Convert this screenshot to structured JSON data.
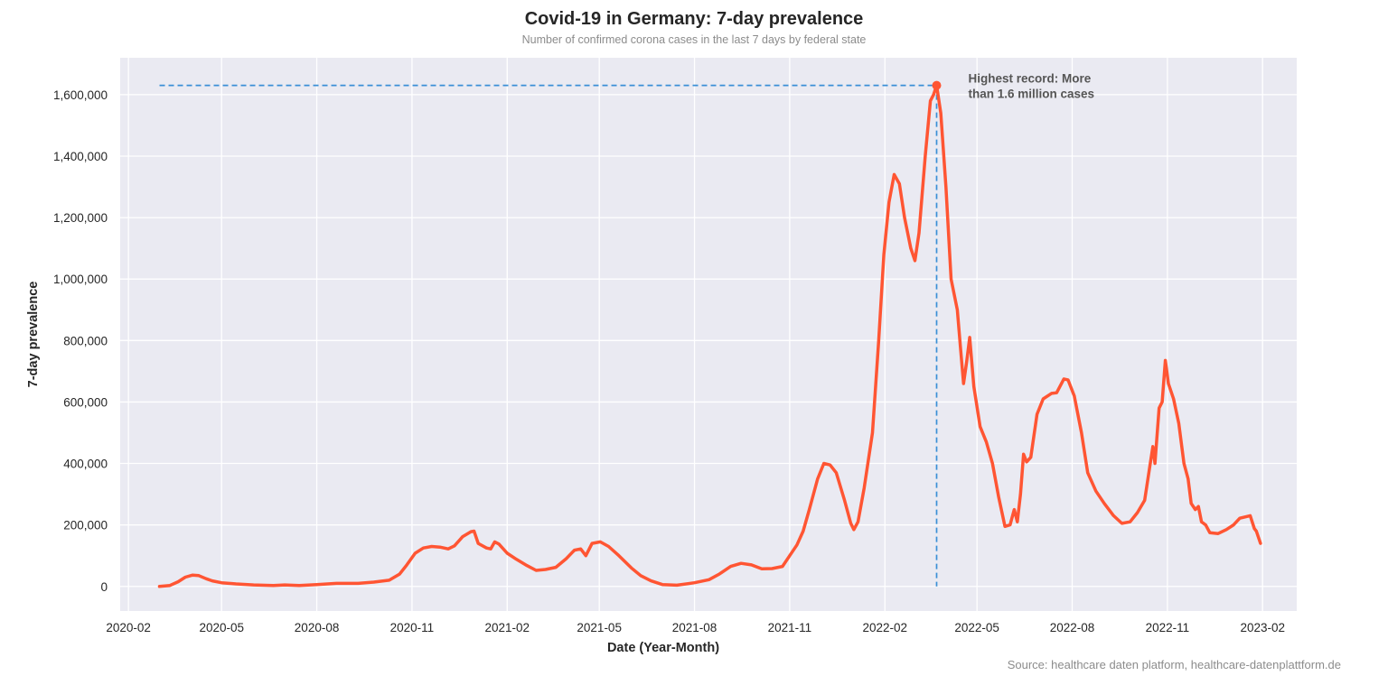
{
  "chart_data": {
    "type": "line",
    "title": "Covid-19 in Germany: 7-day prevalence",
    "subtitle": "Number of confirmed corona cases in the last 7 days by federal state",
    "xlabel": "Date (Year-Month)",
    "ylabel": "7-day prevalence",
    "source": "Source: healthcare daten platform, healthcare-datenplattform.de",
    "xlim": [
      "2020-01-24",
      "2023-03-06"
    ],
    "ylim": [
      -80000,
      1720000
    ],
    "grid": true,
    "x_ticks": [
      "2020-02-01",
      "2020-05-01",
      "2020-08-01",
      "2020-11-01",
      "2021-02-01",
      "2021-05-01",
      "2021-08-01",
      "2021-11-01",
      "2022-02-01",
      "2022-05-01",
      "2022-08-01",
      "2022-11-01",
      "2023-02-01"
    ],
    "x_tick_labels": [
      "2020-02",
      "2020-05",
      "2020-08",
      "2020-11",
      "2021-02",
      "2021-05",
      "2021-08",
      "2021-11",
      "2022-02",
      "2022-05",
      "2022-08",
      "2022-11",
      "2023-02"
    ],
    "y_ticks": [
      0,
      200000,
      400000,
      600000,
      800000,
      1000000,
      1200000,
      1400000,
      1600000
    ],
    "y_tick_labels": [
      "0",
      "200,000",
      "400,000",
      "600,000",
      "800,000",
      "1,000,000",
      "1,200,000",
      "1,400,000",
      "1,600,000"
    ],
    "colors": {
      "line": "#ff5533",
      "reference": "#3a8fd6",
      "background": "#eaeaf2",
      "grid": "#ffffff"
    },
    "series": [
      {
        "points": [
          [
            "2020-03-02",
            0
          ],
          [
            "2020-03-12",
            3000
          ],
          [
            "2020-03-20",
            15000
          ],
          [
            "2020-03-27",
            30000
          ],
          [
            "2020-04-03",
            37000
          ],
          [
            "2020-04-09",
            35000
          ],
          [
            "2020-04-16",
            25000
          ],
          [
            "2020-04-22",
            18000
          ],
          [
            "2020-05-01",
            12000
          ],
          [
            "2020-05-15",
            8000
          ],
          [
            "2020-06-01",
            5000
          ],
          [
            "2020-06-20",
            3000
          ],
          [
            "2020-07-01",
            5000
          ],
          [
            "2020-07-15",
            3000
          ],
          [
            "2020-08-01",
            6000
          ],
          [
            "2020-08-20",
            10000
          ],
          [
            "2020-09-10",
            10000
          ],
          [
            "2020-09-25",
            14000
          ],
          [
            "2020-10-10",
            20000
          ],
          [
            "2020-10-20",
            40000
          ],
          [
            "2020-10-27",
            70000
          ],
          [
            "2020-11-04",
            108000
          ],
          [
            "2020-11-12",
            125000
          ],
          [
            "2020-11-20",
            130000
          ],
          [
            "2020-11-28",
            128000
          ],
          [
            "2020-12-06",
            122000
          ],
          [
            "2020-12-12",
            132000
          ],
          [
            "2020-12-20",
            162000
          ],
          [
            "2020-12-28",
            178000
          ],
          [
            "2020-12-31",
            180000
          ],
          [
            "2021-01-04",
            140000
          ],
          [
            "2021-01-12",
            125000
          ],
          [
            "2021-01-16",
            122000
          ],
          [
            "2021-01-20",
            145000
          ],
          [
            "2021-01-24",
            138000
          ],
          [
            "2021-02-01",
            108000
          ],
          [
            "2021-02-10",
            88000
          ],
          [
            "2021-02-20",
            68000
          ],
          [
            "2021-03-01",
            52000
          ],
          [
            "2021-03-10",
            55000
          ],
          [
            "2021-03-20",
            62000
          ],
          [
            "2021-03-30",
            90000
          ],
          [
            "2021-04-07",
            118000
          ],
          [
            "2021-04-13",
            122000
          ],
          [
            "2021-04-18",
            100000
          ],
          [
            "2021-04-24",
            140000
          ],
          [
            "2021-05-02",
            145000
          ],
          [
            "2021-05-10",
            130000
          ],
          [
            "2021-05-20",
            100000
          ],
          [
            "2021-06-01",
            60000
          ],
          [
            "2021-06-10",
            35000
          ],
          [
            "2021-06-20",
            18000
          ],
          [
            "2021-07-01",
            6000
          ],
          [
            "2021-07-15",
            4000
          ],
          [
            "2021-08-01",
            12000
          ],
          [
            "2021-08-15",
            22000
          ],
          [
            "2021-08-25",
            40000
          ],
          [
            "2021-09-05",
            65000
          ],
          [
            "2021-09-15",
            75000
          ],
          [
            "2021-09-25",
            70000
          ],
          [
            "2021-10-05",
            57000
          ],
          [
            "2021-10-15",
            58000
          ],
          [
            "2021-10-25",
            65000
          ],
          [
            "2021-11-01",
            100000
          ],
          [
            "2021-11-08",
            135000
          ],
          [
            "2021-11-14",
            180000
          ],
          [
            "2021-11-20",
            250000
          ],
          [
            "2021-11-28",
            350000
          ],
          [
            "2021-12-04",
            400000
          ],
          [
            "2021-12-10",
            395000
          ],
          [
            "2021-12-16",
            370000
          ],
          [
            "2021-12-24",
            280000
          ],
          [
            "2021-12-30",
            205000
          ],
          [
            "2022-01-02",
            185000
          ],
          [
            "2022-01-06",
            210000
          ],
          [
            "2022-01-12",
            320000
          ],
          [
            "2022-01-20",
            500000
          ],
          [
            "2022-01-26",
            800000
          ],
          [
            "2022-01-31",
            1080000
          ],
          [
            "2022-02-05",
            1250000
          ],
          [
            "2022-02-10",
            1340000
          ],
          [
            "2022-02-15",
            1310000
          ],
          [
            "2022-02-20",
            1200000
          ],
          [
            "2022-02-26",
            1100000
          ],
          [
            "2022-03-02",
            1060000
          ],
          [
            "2022-03-06",
            1150000
          ],
          [
            "2022-03-12",
            1400000
          ],
          [
            "2022-03-17",
            1580000
          ],
          [
            "2022-03-20",
            1600000
          ],
          [
            "2022-03-23",
            1630000
          ],
          [
            "2022-03-27",
            1540000
          ],
          [
            "2022-04-01",
            1300000
          ],
          [
            "2022-04-06",
            1000000
          ],
          [
            "2022-04-12",
            900000
          ],
          [
            "2022-04-15",
            780000
          ],
          [
            "2022-04-18",
            660000
          ],
          [
            "2022-04-21",
            730000
          ],
          [
            "2022-04-24",
            810000
          ],
          [
            "2022-04-28",
            650000
          ],
          [
            "2022-05-04",
            520000
          ],
          [
            "2022-05-10",
            470000
          ],
          [
            "2022-05-16",
            400000
          ],
          [
            "2022-05-22",
            290000
          ],
          [
            "2022-05-28",
            195000
          ],
          [
            "2022-06-02",
            200000
          ],
          [
            "2022-06-06",
            250000
          ],
          [
            "2022-06-09",
            210000
          ],
          [
            "2022-06-12",
            300000
          ],
          [
            "2022-06-15",
            430000
          ],
          [
            "2022-06-18",
            405000
          ],
          [
            "2022-06-22",
            420000
          ],
          [
            "2022-06-28",
            560000
          ],
          [
            "2022-07-04",
            610000
          ],
          [
            "2022-07-12",
            628000
          ],
          [
            "2022-07-17",
            630000
          ],
          [
            "2022-07-24",
            675000
          ],
          [
            "2022-07-28",
            672000
          ],
          [
            "2022-08-03",
            620000
          ],
          [
            "2022-08-10",
            500000
          ],
          [
            "2022-08-16",
            370000
          ],
          [
            "2022-08-24",
            310000
          ],
          [
            "2022-09-01",
            270000
          ],
          [
            "2022-09-10",
            230000
          ],
          [
            "2022-09-18",
            205000
          ],
          [
            "2022-09-26",
            210000
          ],
          [
            "2022-10-03",
            240000
          ],
          [
            "2022-10-10",
            280000
          ],
          [
            "2022-10-15",
            390000
          ],
          [
            "2022-10-18",
            455000
          ],
          [
            "2022-10-20",
            400000
          ],
          [
            "2022-10-24",
            580000
          ],
          [
            "2022-10-27",
            600000
          ],
          [
            "2022-10-30",
            735000
          ],
          [
            "2022-11-02",
            660000
          ],
          [
            "2022-11-07",
            610000
          ],
          [
            "2022-11-12",
            530000
          ],
          [
            "2022-11-17",
            400000
          ],
          [
            "2022-11-21",
            350000
          ],
          [
            "2022-11-24",
            270000
          ],
          [
            "2022-11-28",
            250000
          ],
          [
            "2022-12-01",
            260000
          ],
          [
            "2022-12-04",
            210000
          ],
          [
            "2022-12-08",
            200000
          ],
          [
            "2022-12-12",
            175000
          ],
          [
            "2022-12-20",
            172000
          ],
          [
            "2022-12-28",
            185000
          ],
          [
            "2023-01-04",
            200000
          ],
          [
            "2023-01-10",
            222000
          ],
          [
            "2023-01-20",
            230000
          ],
          [
            "2023-01-24",
            188000
          ],
          [
            "2023-01-26",
            180000
          ],
          [
            "2023-01-30",
            140000
          ]
        ]
      }
    ],
    "peak": {
      "date": "2022-03-23",
      "value": 1630000,
      "annotation": [
        "Highest record: More",
        "than 1.6 million cases"
      ]
    }
  }
}
